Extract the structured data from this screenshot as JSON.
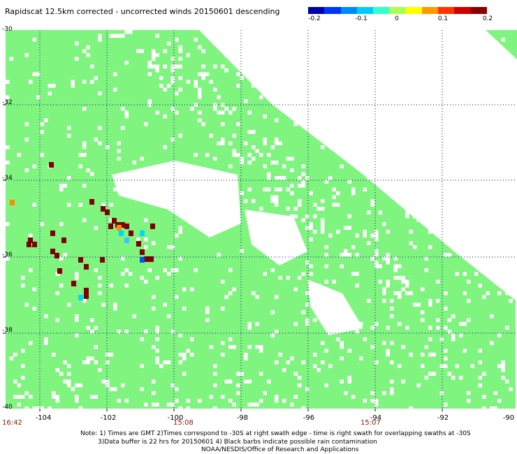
{
  "title": "Rapidscat 12.5km corrected - uncorrected winds 20150601 descending",
  "colorbar": {
    "colors": [
      "#0000aa",
      "#0033ff",
      "#0088ff",
      "#00ccff",
      "#33ffcc",
      "#aaff55",
      "#ffff00",
      "#ff9900",
      "#ff3300",
      "#cc0000",
      "#880000"
    ],
    "ticks": [
      "-0.2",
      "-0.1",
      "0",
      "0.1",
      "0.2"
    ]
  },
  "map": {
    "lat_labels": [
      "-30",
      "-32",
      "-34",
      "-36",
      "-38",
      "-40"
    ],
    "lon_labels": [
      "-104",
      "-102",
      "-100",
      "-98",
      "-96",
      "-94",
      "-92",
      "-90"
    ],
    "colors": {
      "zero": "#7ff47f",
      "red": "#800000",
      "orange": "#ff8c00",
      "cyan": "#00d8ff",
      "blue": "#0055ff",
      "lightblue": "#40c0ff",
      "grid": "#000080"
    }
  },
  "times": [
    "16:42",
    "15:08",
    "15:07"
  ],
  "notes": [
    "Note: 1) Times are GMT 2)Times correspond to -30S at right swath edge - time is right swath for overlapping swaths at -30S",
    "3)Data buffer is 22 hrs for 20150601 4) Black barbs indicate possible rain contamination",
    "NOAA/NESDIS/Office of Research and Applications"
  ]
}
